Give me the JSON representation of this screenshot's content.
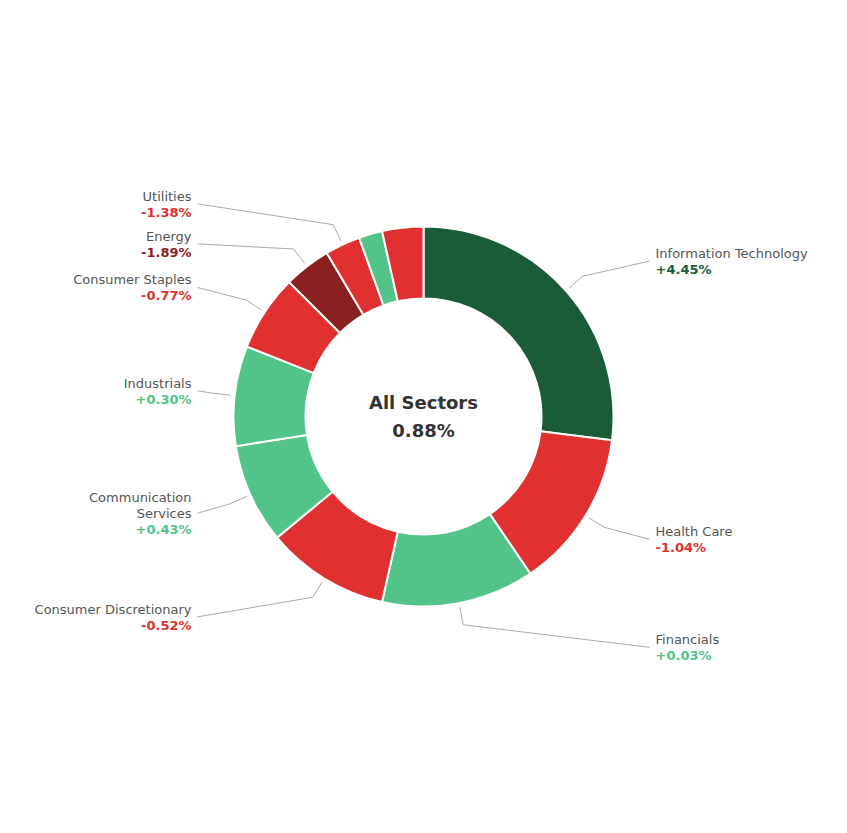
{
  "chart_data": {
    "type": "donut",
    "categories": [
      "Information Technology",
      "Health Care",
      "Financials",
      "Consumer Discretionary",
      "Communication\nServices",
      "Industrials",
      "Consumer Staples",
      "Energy",
      "Utilities",
      null,
      null
    ],
    "values": [
      27.0,
      13.5,
      13.0,
      10.5,
      8.5,
      8.5,
      6.5,
      4.0,
      3.0,
      2.0,
      3.5
    ],
    "colors": [
      "#1a5c38",
      "#e03030",
      "#52c48a",
      "#e03030",
      "#52c48a",
      "#52c48a",
      "#e03030",
      "#8b2020",
      "#e03030",
      "#52c48a",
      "#e03030"
    ],
    "changes": [
      4.45,
      -1.04,
      0.03,
      -0.52,
      0.43,
      0.3,
      -0.77,
      -1.89,
      -1.38,
      null,
      null
    ],
    "change_labels": [
      "+4.45%",
      "-1.04%",
      "+0.03%",
      "-0.52%",
      "+0.43%",
      "+0.30%",
      "-0.77%",
      "-1.89%",
      "-1.38%",
      null,
      null
    ],
    "center_label": "All Sectors",
    "center_value": 0.88,
    "center_value_label": "0.88%"
  }
}
